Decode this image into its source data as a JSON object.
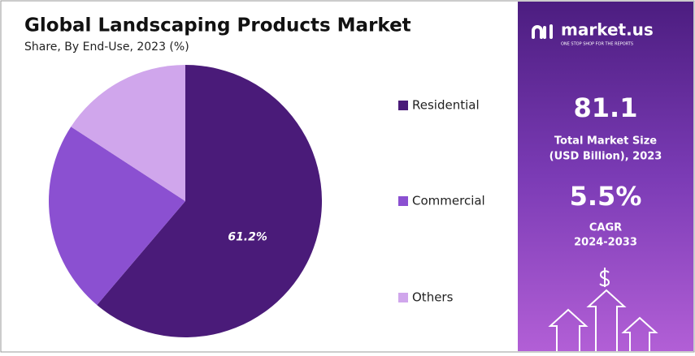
{
  "chart_data": {
    "type": "pie",
    "title": "Global Landscaping Products Market",
    "subtitle": "Share, By End-Use, 2023 (%)",
    "categories": [
      "Residential",
      "Commercial",
      "Others"
    ],
    "values": [
      61.2,
      23.0,
      15.8
    ],
    "value_labels": [
      "61.2%",
      null,
      null
    ],
    "colors": [
      "#4a1b79",
      "#8b50d1",
      "#d0a6ec"
    ]
  },
  "sidebar": {
    "brand": "market.us",
    "tagline": "ONE STOP SHOP FOR THE REPORTS",
    "market_size": "81.1",
    "market_size_label_1": "Total Market Size",
    "market_size_label_2": "(USD Billion), 2023",
    "cagr": "5.5%",
    "cagr_label": "CAGR",
    "cagr_period": "2024-2033"
  }
}
